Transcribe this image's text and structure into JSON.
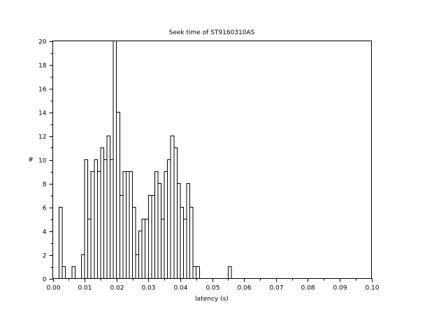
{
  "chart_data": {
    "type": "bar",
    "title": "Seek time of ST9160310AS",
    "xlabel": "latency (s)",
    "ylabel": "#",
    "xlim": [
      0,
      0.1
    ],
    "ylim": [
      0,
      20
    ],
    "x_ticks": [
      0.0,
      0.01,
      0.02,
      0.03,
      0.04,
      0.05,
      0.06,
      0.07,
      0.08,
      0.09,
      0.1
    ],
    "x_tick_labels": [
      "0.00",
      "0.01",
      "0.02",
      "0.03",
      "0.04",
      "0.05",
      "0.06",
      "0.07",
      "0.08",
      "0.09",
      "0.10"
    ],
    "y_ticks": [
      0,
      2,
      4,
      6,
      8,
      10,
      12,
      14,
      16,
      18,
      20
    ],
    "y_tick_labels": [
      "0",
      "2",
      "4",
      "6",
      "8",
      "10",
      "12",
      "14",
      "16",
      "18",
      "20"
    ],
    "bin_width": 0.001,
    "bin_start": [
      0.002,
      0.003,
      0.004,
      0.005,
      0.006,
      0.007,
      0.008,
      0.009,
      0.01,
      0.011,
      0.012,
      0.013,
      0.014,
      0.015,
      0.016,
      0.017,
      0.018,
      0.019,
      0.02,
      0.021,
      0.022,
      0.023,
      0.024,
      0.025,
      0.026,
      0.027,
      0.028,
      0.029,
      0.03,
      0.031,
      0.032,
      0.033,
      0.034,
      0.035,
      0.036,
      0.037,
      0.038,
      0.039,
      0.04,
      0.041,
      0.042,
      0.043,
      0.044,
      0.045,
      0.046,
      0.047,
      0.048,
      0.049,
      0.05,
      0.051,
      0.052,
      0.053,
      0.054,
      0.055
    ],
    "values": [
      6,
      1,
      0,
      0,
      1,
      0,
      0,
      2,
      10,
      5,
      9,
      10,
      9,
      11,
      10,
      12,
      10,
      20,
      14,
      7,
      9,
      9,
      9,
      6,
      2,
      4,
      5,
      5,
      7,
      7,
      9,
      8,
      5,
      9,
      10,
      12,
      11,
      8,
      6,
      5,
      8,
      6,
      1,
      1,
      0,
      0,
      0,
      0,
      0,
      0,
      0,
      0,
      0,
      1
    ],
    "grid": false,
    "legend": "none",
    "bar_fill": "#ffffff",
    "bar_edge": "#000000"
  }
}
